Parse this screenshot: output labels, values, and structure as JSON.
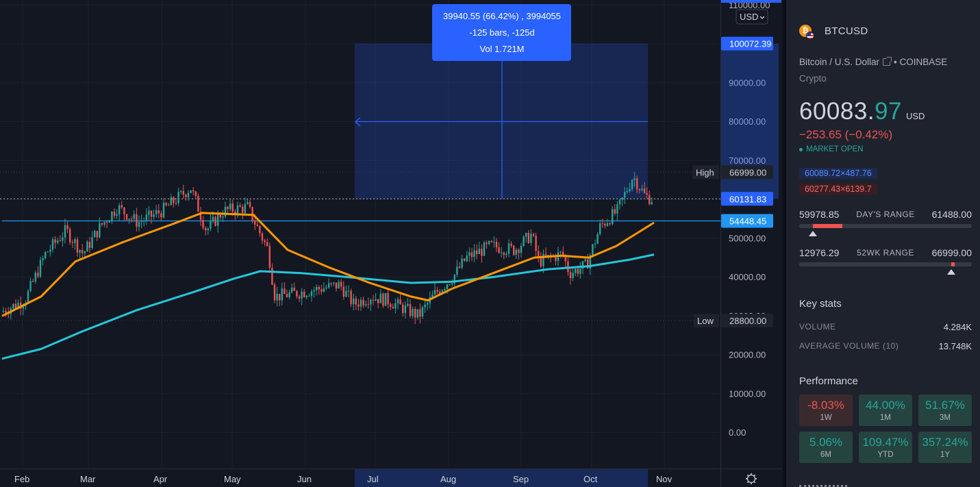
{
  "chart": {
    "axis_currency": "USD",
    "y_ticks": [
      "110000.00",
      "90000.00",
      "80000.00",
      "70000.00",
      "50000.00",
      "40000.00",
      "30000.00",
      "20000.00",
      "10000.00",
      "0.00"
    ],
    "price_labels": {
      "range_top": "100072.39",
      "high_value": "66999.00",
      "high_label": "High",
      "current": "60131.83",
      "horizontal_line": "54448.45",
      "low_value": "28800.00",
      "low_label": "Low"
    },
    "months": [
      "Feb",
      "Mar",
      "Apr",
      "May",
      "Jun",
      "Jul",
      "Aug",
      "Sep",
      "Oct",
      "Nov"
    ],
    "measure_tooltip": {
      "line1": "39940.55 (66.42%) , 3994055",
      "line2": "-125 bars, -125d",
      "line3": "Vol 1.721M"
    },
    "colors": {
      "bg": "#131722",
      "up": "#26a69a",
      "down": "#ef5350",
      "ma_fast": "#ff9800",
      "ma_slow": "#26c6da",
      "measure": "#2962ff"
    }
  },
  "chart_data": {
    "type": "candlestick",
    "series": [
      {
        "name": "",
        "x": [
          "Feb",
          "Mar",
          "Apr",
          "May",
          "Jun",
          "Jul",
          "Aug",
          "Sep",
          "Oct",
          "Nov"
        ],
        "values": [
          33000,
          47000,
          58000,
          57000,
          36000,
          34000,
          40000,
          48000,
          44000,
          60100
        ]
      }
    ],
    "ylim": [
      0,
      110000
    ],
    "grid": true
  },
  "sidebar": {
    "symbol": "BTCUSD",
    "coin_glyph": "₿",
    "description": "Bitcoin / U.S. Dollar",
    "exchange": "• COINBASE",
    "type": "Crypto",
    "price_int": "60083.",
    "price_frac": "97",
    "price_currency": "USD",
    "change": "−253.65 (−0.42%)",
    "market_status": "MARKET OPEN",
    "bid": "60089.72×487.76",
    "ask": "60277.43×6139.7",
    "days_range": {
      "low": "59978.85",
      "label": "DAY'S RANGE",
      "high": "61488.00",
      "fill_start": 0.08,
      "fill_end": 0.25,
      "marker": 0.08
    },
    "week52_range": {
      "low": "12976.29",
      "label": "52WK RANGE",
      "high": "66999.00",
      "fill_start": 0.88,
      "fill_end": 0.9,
      "marker": 0.88
    },
    "key_stats_title": "Key stats",
    "volume_label": "VOLUME",
    "volume": "4.284K",
    "avg_volume_label": "AVERAGE VOLUME (10)",
    "avg_volume": "13.748K",
    "performance_title": "Performance",
    "performance": [
      {
        "value": "-8.03%",
        "period": "1W",
        "dir": "neg"
      },
      {
        "value": "44.00%",
        "period": "1M",
        "dir": "pos"
      },
      {
        "value": "51.67%",
        "period": "3M",
        "dir": "pos"
      },
      {
        "value": "5.06%",
        "period": "6M",
        "dir": "pos"
      },
      {
        "value": "109.47%",
        "period": "YTD",
        "dir": "pos"
      },
      {
        "value": "357.24%",
        "period": "1Y",
        "dir": "pos"
      }
    ]
  }
}
